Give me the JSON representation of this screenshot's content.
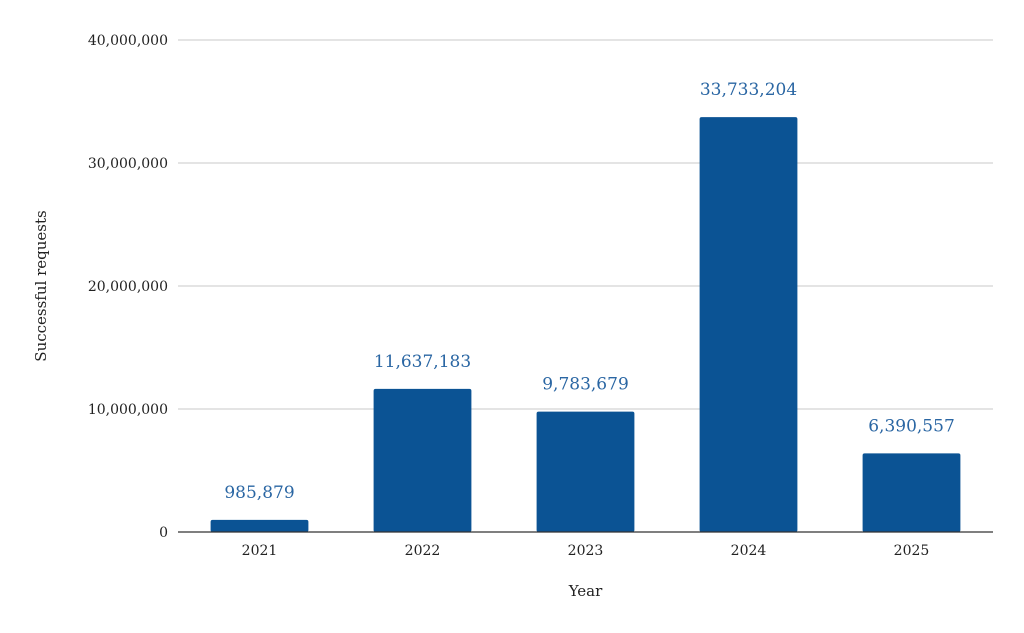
{
  "chart_data": {
    "type": "bar",
    "categories": [
      "2021",
      "2022",
      "2023",
      "2024",
      "2025"
    ],
    "values": [
      985879,
      11637183,
      9783679,
      33733204,
      6390557
    ],
    "data_labels": [
      "985,879",
      "11,637,183",
      "9,783,679",
      "33,733,204",
      "6,390,557"
    ],
    "yticks": [
      0,
      10000000,
      20000000,
      30000000,
      40000000
    ],
    "ytick_labels": [
      "0",
      "10,000,000",
      "20,000,000",
      "30,000,000",
      "40,000,000"
    ],
    "ylim": [
      0,
      40000000
    ],
    "xlabel": "Year",
    "ylabel": "Successful requests",
    "grid": true,
    "colors": {
      "bar": "#0b5394",
      "data_label": "#2a66a3"
    }
  }
}
